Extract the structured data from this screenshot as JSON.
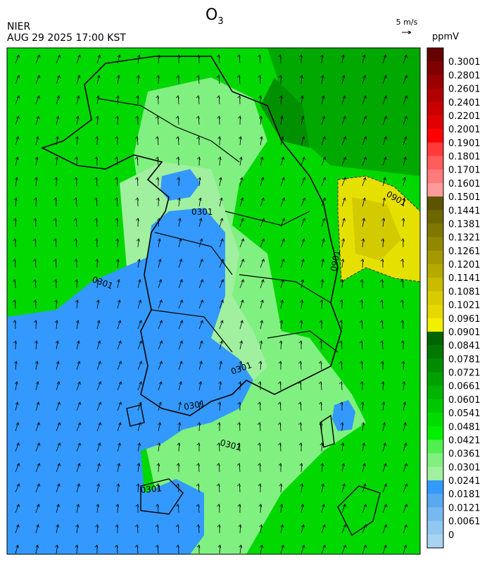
{
  "header": {
    "title": "O",
    "title_subscript": "3",
    "source": "NIER",
    "datetime": "AUG 29 2025 17:00 KST"
  },
  "wind_legend": {
    "label": "5 m/s"
  },
  "colorbar": {
    "unit": "ppmV",
    "labels": [
      "0.3001",
      "0.2801",
      "0.2601",
      "0.2401",
      "0.2201",
      "0.2001",
      "0.1901",
      "0.1801",
      "0.1701",
      "0.1601",
      "0.1501",
      "0.1441",
      "0.1381",
      "0.1321",
      "0.1261",
      "0.1201",
      "0.1141",
      "0.1081",
      "0.1021",
      "0.0961",
      "0.0901",
      "0.0841",
      "0.0781",
      "0.0721",
      "0.0661",
      "0.0601",
      "0.0541",
      "0.0481",
      "0.0421",
      "0.0361",
      "0.0301",
      "0.0241",
      "0.0181",
      "0.0121",
      "0.0061",
      "0"
    ],
    "colors": [
      "#660000",
      "#800000",
      "#990000",
      "#b00000",
      "#c80000",
      "#e00000",
      "#ff0000",
      "#ff3a3a",
      "#ff5c5c",
      "#ff7a7a",
      "#ff9a9a",
      "#5c5400",
      "#6e6600",
      "#807700",
      "#928800",
      "#a49900",
      "#b6aa00",
      "#c8bb00",
      "#d8cc00",
      "#e6d800",
      "#f0f000",
      "#006400",
      "#007800",
      "#008c00",
      "#00a000",
      "#00b400",
      "#00c800",
      "#00dc00",
      "#00f000",
      "#50f050",
      "#80f080",
      "#a0f0a0",
      "#3399ff",
      "#5aa8f0",
      "#78b8f0",
      "#90c8f0",
      "#a8d4f0"
    ]
  },
  "contour_labels": [
    "0301",
    "0301",
    "0901",
    "0901",
    "0301",
    "0301",
    "0301",
    "0301"
  ]
}
